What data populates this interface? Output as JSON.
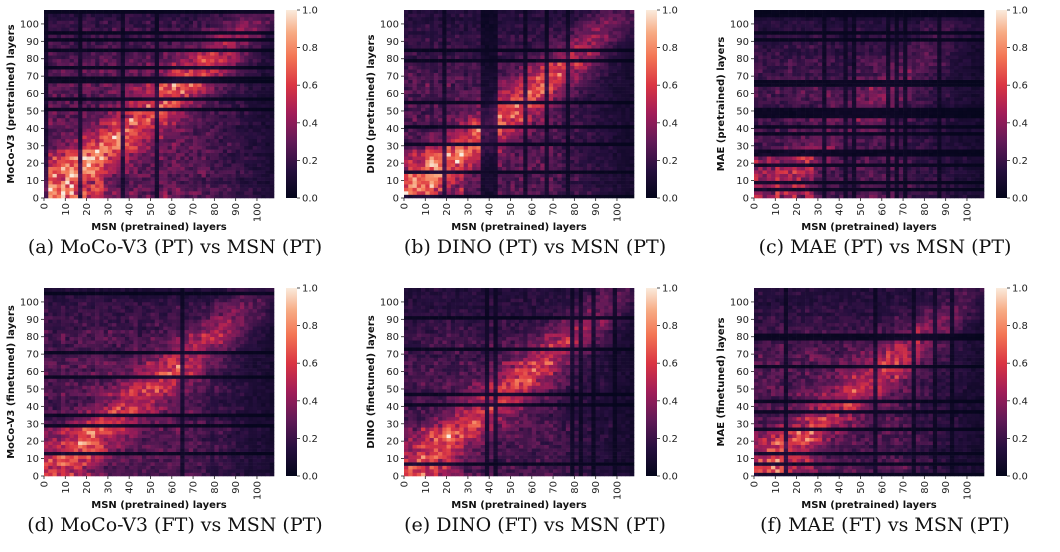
{
  "colormap": "rocket",
  "chart_data": [
    {
      "type": "heatmap",
      "id": "a",
      "caption": "(a) MoCo-V3 (PT) vs MSN (PT)",
      "xlabel": "MSN (pretrained) layers",
      "ylabel": "MoCo-V3 (pretrained) layers",
      "xlim": [
        0,
        108
      ],
      "ylim": [
        0,
        108
      ],
      "xticks": [
        0,
        10,
        20,
        30,
        40,
        50,
        60,
        70,
        80,
        90,
        100
      ],
      "yticks": [
        0,
        10,
        20,
        30,
        40,
        50,
        60,
        70,
        80,
        90,
        100
      ],
      "colorbar": {
        "range": [
          0.0,
          1.0
        ],
        "ticks": [
          "0.0",
          "0.2",
          "0.4",
          "0.6",
          "0.8",
          "1.0"
        ]
      },
      "diagonal_strength": 0.55,
      "overall_level": 0.45,
      "low_region_boost": 0.35
    },
    {
      "type": "heatmap",
      "id": "b",
      "caption": "(b) DINO (PT) vs MSN (PT)",
      "xlabel": "MSN (pretrained) layers",
      "ylabel": "DINO (pretrained) layers",
      "xlim": [
        0,
        108
      ],
      "ylim": [
        0,
        108
      ],
      "xticks": [
        0,
        10,
        20,
        30,
        40,
        50,
        60,
        70,
        80,
        90,
        100
      ],
      "yticks": [
        0,
        10,
        20,
        30,
        40,
        50,
        60,
        70,
        80,
        90,
        100
      ],
      "colorbar": {
        "range": [
          0.0,
          1.0
        ],
        "ticks": [
          "0.0",
          "0.2",
          "0.4",
          "0.6",
          "0.8",
          "1.0"
        ]
      },
      "diagonal_strength": 0.6,
      "overall_level": 0.38,
      "low_region_boost": 0.2
    },
    {
      "type": "heatmap",
      "id": "c",
      "caption": "(c) MAE (PT) vs MSN (PT)",
      "xlabel": "MSN (pretrained) layers",
      "ylabel": "MAE (pretrained) layers",
      "xlim": [
        0,
        108
      ],
      "ylim": [
        0,
        108
      ],
      "xticks": [
        0,
        10,
        20,
        30,
        40,
        50,
        60,
        70,
        80,
        90,
        100
      ],
      "yticks": [
        0,
        10,
        20,
        30,
        40,
        50,
        60,
        70,
        80,
        90,
        100
      ],
      "colorbar": {
        "range": [
          0.0,
          1.0
        ],
        "ticks": [
          "0.0",
          "0.2",
          "0.4",
          "0.6",
          "0.8",
          "1.0"
        ]
      },
      "diagonal_strength": 0.15,
      "overall_level": 0.35,
      "low_region_boost": 0.3
    },
    {
      "type": "heatmap",
      "id": "d",
      "caption": "(d) MoCo-V3 (FT) vs MSN (PT)",
      "xlabel": "MSN (pretrained) layers",
      "ylabel": "MoCo-V3 (finetuned) layers",
      "xlim": [
        0,
        108
      ],
      "ylim": [
        0,
        108
      ],
      "xticks": [
        0,
        10,
        20,
        30,
        40,
        50,
        60,
        70,
        80,
        90,
        100
      ],
      "yticks": [
        0,
        10,
        20,
        30,
        40,
        50,
        60,
        70,
        80,
        90,
        100
      ],
      "colorbar": {
        "range": [
          0.0,
          1.0
        ],
        "ticks": [
          "0.0",
          "0.2",
          "0.4",
          "0.6",
          "0.8",
          "1.0"
        ]
      },
      "diagonal_strength": 0.45,
      "overall_level": 0.4,
      "low_region_boost": 0.2
    },
    {
      "type": "heatmap",
      "id": "e",
      "caption": "(e) DINO (FT) vs MSN (PT)",
      "xlabel": "MSN (pretrained) layers",
      "ylabel": "DINO (finetuned) layers",
      "xlim": [
        0,
        108
      ],
      "ylim": [
        0,
        108
      ],
      "xticks": [
        0,
        10,
        20,
        30,
        40,
        50,
        60,
        70,
        80,
        90,
        100
      ],
      "yticks": [
        0,
        10,
        20,
        30,
        40,
        50,
        60,
        70,
        80,
        90,
        100
      ],
      "colorbar": {
        "range": [
          0.0,
          1.0
        ],
        "ticks": [
          "0.0",
          "0.2",
          "0.4",
          "0.6",
          "0.8",
          "1.0"
        ]
      },
      "diagonal_strength": 0.5,
      "overall_level": 0.36,
      "low_region_boost": 0.2
    },
    {
      "type": "heatmap",
      "id": "f",
      "caption": "(f) MAE (FT) vs MSN (PT)",
      "xlabel": "MSN (pretrained) layers",
      "ylabel": "MAE (finetuned) layers",
      "xlim": [
        0,
        108
      ],
      "ylim": [
        0,
        108
      ],
      "xticks": [
        0,
        10,
        20,
        30,
        40,
        50,
        60,
        70,
        80,
        90,
        100
      ],
      "yticks": [
        0,
        10,
        20,
        30,
        40,
        50,
        60,
        70,
        80,
        90,
        100
      ],
      "colorbar": {
        "range": [
          0.0,
          1.0
        ],
        "ticks": [
          "0.0",
          "0.2",
          "0.4",
          "0.6",
          "0.8",
          "1.0"
        ]
      },
      "diagonal_strength": 0.4,
      "overall_level": 0.38,
      "low_region_boost": 0.25
    }
  ]
}
